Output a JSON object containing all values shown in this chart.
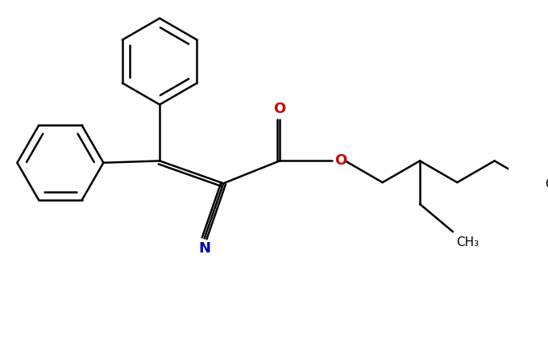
{
  "bg_color": "#ffffff",
  "bond_color": "#000000",
  "bond_width": 1.8,
  "o_color": "#cc0000",
  "n_color": "#0000bb",
  "figsize": [
    6.8,
    4.5
  ],
  "dpi": 100,
  "xlim": [
    0,
    13.5
  ],
  "ylim": [
    -0.5,
    9.0
  ]
}
